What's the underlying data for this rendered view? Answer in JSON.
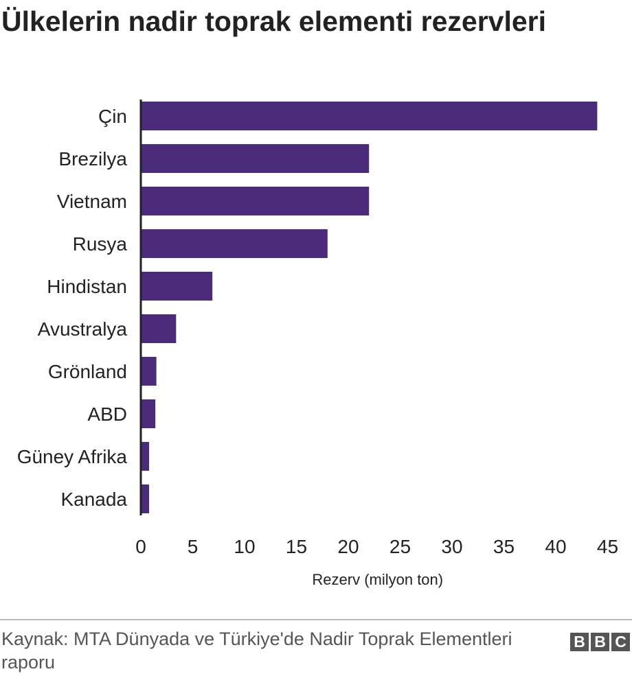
{
  "chart_data": {
    "type": "bar",
    "orientation": "horizontal",
    "title": "Ülkelerin nadir toprak elementi rezervleri",
    "xlabel": "Rezerv (milyon ton)",
    "ylabel": "",
    "categories": [
      "Çin",
      "Brezilya",
      "Vietnam",
      "Rusya",
      "Hindistan",
      "Avustralya",
      "Grönland",
      "ABD",
      "Güney Afrika",
      "Kanada"
    ],
    "values": [
      44,
      22,
      22,
      18,
      6.9,
      3.4,
      1.5,
      1.4,
      0.8,
      0.8
    ],
    "xlim": [
      0,
      45
    ],
    "xticks": [
      "0",
      "5",
      "10",
      "15",
      "20",
      "25",
      "30",
      "35",
      "40",
      "45"
    ],
    "bar_color": "#4b2c7a",
    "grid": false
  },
  "footer": {
    "source": "Kaynak: MTA Dünyada ve Türkiye'de Nadir Toprak Elementleri raporu",
    "logo": [
      "B",
      "B",
      "C"
    ]
  }
}
